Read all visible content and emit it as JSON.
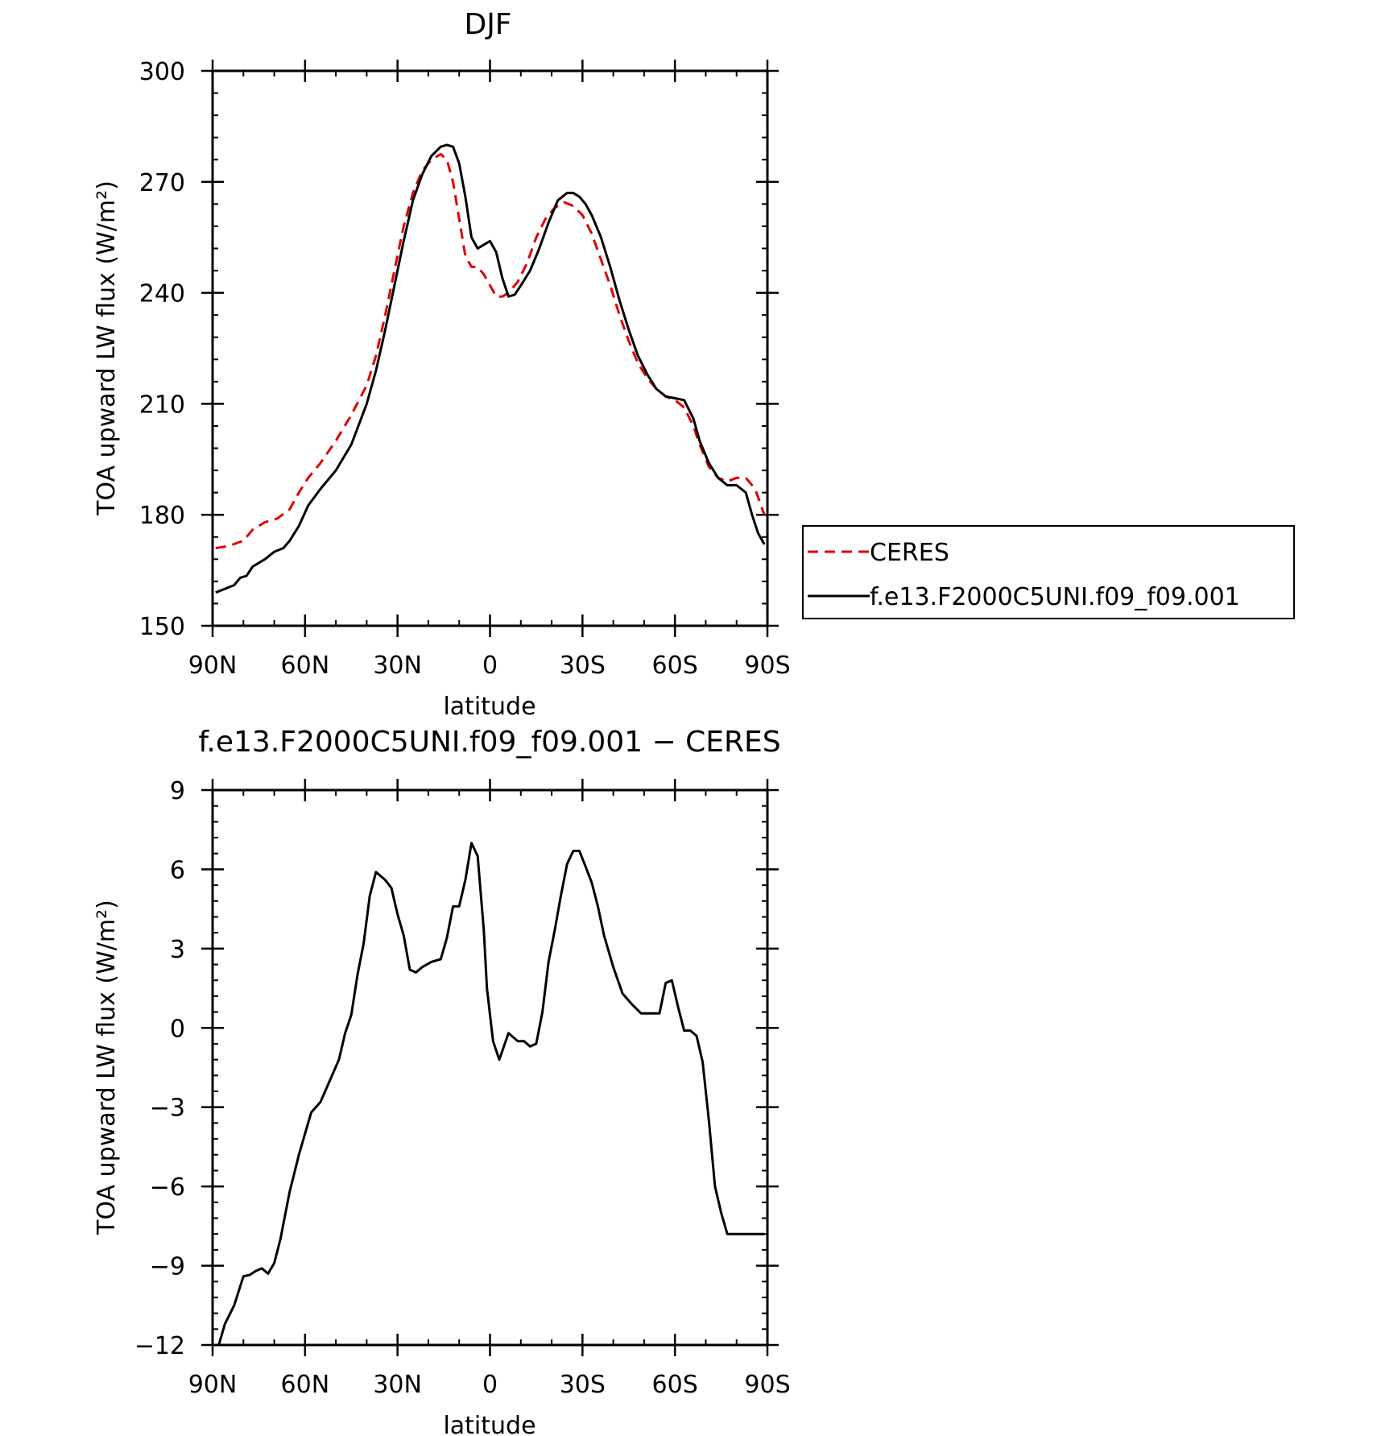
{
  "chart_data": [
    {
      "type": "line",
      "title": "DJF",
      "xlabel": "latitude",
      "ylabel": "TOA upward LW flux (W/m²)",
      "ylim": [
        150,
        300
      ],
      "xlim": [
        90,
        -90
      ],
      "xticks": [
        90,
        60,
        30,
        0,
        -30,
        -60,
        -90
      ],
      "xtick_labels": [
        "90N",
        "60N",
        "30N",
        "0",
        "30S",
        "60S",
        "90S"
      ],
      "yticks": [
        150,
        180,
        210,
        240,
        270,
        300
      ],
      "ytick_labels": [
        "150",
        "180",
        "210",
        "240",
        "270",
        "300"
      ],
      "legend": "right",
      "series": [
        {
          "name": "CERES",
          "color": "#e00000",
          "dash": true,
          "x": [
            89,
            85,
            80,
            77,
            73,
            69,
            65,
            62,
            59,
            55,
            50,
            45,
            40,
            37,
            34,
            31,
            28,
            25,
            22,
            19,
            16,
            14,
            12,
            10,
            8,
            6,
            4,
            2,
            0,
            -2,
            -4,
            -6,
            -9,
            -12,
            -15,
            -18,
            -21,
            -24,
            -27,
            -30,
            -33,
            -36,
            -39,
            -42,
            -45,
            -48,
            -51,
            -54,
            -57,
            -60,
            -63,
            -66,
            -68,
            -71,
            -74,
            -77,
            -80,
            -83,
            -86,
            -89
          ],
          "values": [
            171,
            171.5,
            173,
            176,
            178,
            179,
            181.5,
            186,
            190,
            194,
            200,
            207,
            215,
            223,
            234,
            246,
            258,
            267,
            273,
            276,
            277.5,
            276,
            270,
            260,
            250,
            247,
            247,
            245,
            242,
            239,
            239,
            240,
            243,
            248,
            255,
            260,
            263,
            264.5,
            263.5,
            261,
            256,
            249,
            242,
            234,
            227,
            221,
            217,
            214,
            212,
            211,
            209,
            204,
            199,
            193,
            190,
            189,
            190,
            190,
            187,
            180
          ]
        },
        {
          "name": "f.e13.F2000C5UNI.f09_f09.001",
          "color": "#000000",
          "dash": false,
          "x": [
            89,
            86,
            83,
            81,
            79,
            77,
            73,
            70,
            67,
            65,
            62,
            59,
            55,
            50,
            45,
            40,
            37,
            34,
            31,
            28,
            25,
            22,
            19,
            16,
            14,
            12,
            10,
            8,
            6,
            4,
            2,
            0,
            -2,
            -4,
            -6,
            -8,
            -10,
            -13,
            -16,
            -19,
            -22,
            -25,
            -27,
            -29,
            -31,
            -33,
            -36,
            -39,
            -42,
            -45,
            -48,
            -51,
            -54,
            -57,
            -60,
            -63,
            -66,
            -68,
            -71,
            -74,
            -77,
            -80,
            -83,
            -85,
            -87,
            -89
          ],
          "values": [
            159,
            160,
            161,
            163,
            163.5,
            166,
            168,
            170,
            171,
            173,
            177,
            182.5,
            187,
            192,
            199,
            210,
            219,
            230,
            242,
            254,
            265,
            272,
            277,
            279.5,
            280,
            279.5,
            275,
            266,
            255,
            252,
            253,
            254,
            251,
            244,
            239,
            239.5,
            242,
            246,
            252,
            259,
            265,
            267,
            267,
            266,
            264,
            261,
            255,
            247,
            238,
            230,
            223,
            218,
            214,
            212,
            211.5,
            211,
            206,
            200,
            194,
            190,
            188,
            188,
            186,
            180,
            175,
            172
          ]
        }
      ]
    },
    {
      "type": "line",
      "title": "f.e13.F2000C5UNI.f09_f09.001 − CERES",
      "xlabel": "latitude",
      "ylabel": "TOA upward LW flux (W/m²)",
      "ylim": [
        -12,
        9
      ],
      "xlim": [
        90,
        -90
      ],
      "xticks": [
        90,
        60,
        30,
        0,
        -30,
        -60,
        -90
      ],
      "xtick_labels": [
        "90N",
        "60N",
        "30N",
        "0",
        "30S",
        "60S",
        "90S"
      ],
      "yticks": [
        -12,
        -9,
        -6,
        -3,
        0,
        3,
        6,
        9
      ],
      "ytick_labels": [
        "−12",
        "−9",
        "−6",
        "−3",
        "0",
        "3",
        "6",
        "9"
      ],
      "series": [
        {
          "name": "",
          "color": "#000000",
          "dash": false,
          "x": [
            88,
            86,
            83,
            80,
            78,
            76,
            74,
            72,
            70,
            68,
            65,
            62,
            60,
            58,
            55,
            52,
            49,
            47,
            45,
            43,
            41,
            39,
            37,
            34,
            32,
            30,
            28,
            26,
            24,
            22,
            19,
            16,
            14,
            12,
            10,
            8,
            6,
            4,
            2,
            1,
            -1,
            -3,
            -6,
            -9,
            -11,
            -13,
            -15,
            -17,
            -19,
            -21,
            -23,
            -25,
            -27,
            -29,
            -31,
            -33,
            -35,
            -37,
            -40,
            -43,
            -46,
            -49,
            -52,
            -55,
            -57,
            -59,
            -61,
            -63,
            -65,
            -67,
            -69,
            -71,
            -73,
            -75,
            -77,
            -79,
            -81,
            -83,
            -85,
            -87,
            -89
          ],
          "values": [
            -12,
            -11.2,
            -10.5,
            -9.4,
            -9.35,
            -9.2,
            -9.1,
            -9.3,
            -8.9,
            -8,
            -6.2,
            -4.8,
            -4,
            -3.2,
            -2.8,
            -2,
            -1.2,
            -0.2,
            0.5,
            2,
            3.2,
            5,
            5.9,
            5.6,
            5.3,
            4.3,
            3.5,
            2.2,
            2.1,
            2.3,
            2.5,
            2.6,
            3.4,
            4.6,
            4.6,
            5.6,
            7,
            6.5,
            3.7,
            1.5,
            -0.5,
            -1.2,
            -0.2,
            -0.5,
            -0.5,
            -0.7,
            -0.6,
            0.6,
            2.5,
            3.7,
            5,
            6.2,
            6.7,
            6.7,
            6.1,
            5.5,
            4.6,
            3.5,
            2.3,
            1.3,
            0.9,
            0.55,
            0.55,
            0.55,
            1.7,
            1.8,
            0.8,
            -0.1,
            -0.1,
            -0.3,
            -1.3,
            -3.5,
            -6,
            -7,
            -7.8,
            -7.8,
            -7.8,
            -7.8,
            -7.8,
            -7.8,
            -7.8
          ]
        }
      ]
    }
  ]
}
